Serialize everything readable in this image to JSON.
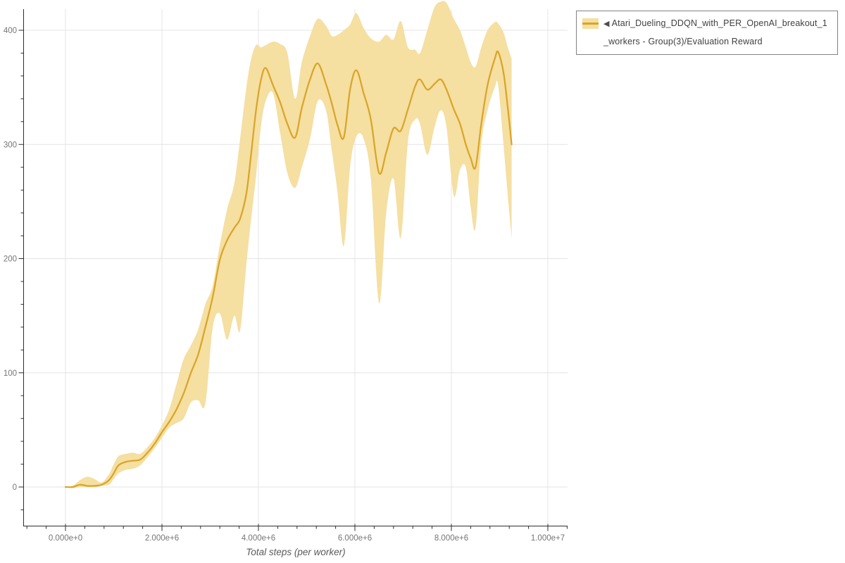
{
  "legend": {
    "arrow": "◀",
    "label": "Atari_Dueling_DDQN_with_PER_OpenAI_breakout_1_workers - Group(3)/Evaluation Reward",
    "border_color": "#828282"
  },
  "chart_data": {
    "type": "line",
    "title": "Atari_Dueling_DDQN_with_PER_OpenAI_breakout_1_workers - Group(3)/Evaluation Reward",
    "xlabel": "Total steps (per worker)",
    "ylabel": "",
    "legend_position": "top-right",
    "grid": "major",
    "xlim": [
      -880000,
      10430000
    ],
    "ylim": [
      -34,
      418
    ],
    "x_axis": {
      "major_ticks": [
        0,
        2000000,
        4000000,
        6000000,
        8000000,
        10000000
      ],
      "major_labels": [
        "0.000e+0",
        "2.000e+6",
        "4.000e+6",
        "6.000e+6",
        "8.000e+6",
        "1.000e+7"
      ],
      "minor_interval": 400000
    },
    "y_axis": {
      "major_ticks": [
        0,
        100,
        200,
        300,
        400
      ],
      "major_labels": [
        "0",
        "100",
        "200",
        "300",
        "400"
      ],
      "minor_interval": 20
    },
    "colors": {
      "line": "#d9a426",
      "band": "#f5dfa1",
      "grid": "#e4e4e4",
      "axis": "#2e2e2e",
      "tick_label": "#757575",
      "axis_title": "#595959"
    },
    "series": [
      {
        "name": "Atari_Dueling_DDQN_with_PER_OpenAI_breakout_1_workers - Group(3)/Evaluation Reward",
        "metric": "Evaluation Reward",
        "x_steps": [
          0,
          150000,
          300000,
          450000,
          600000,
          750000,
          900000,
          1000000,
          1100000,
          1250000,
          1400000,
          1550000,
          1700000,
          1850000,
          2000000,
          2150000,
          2300000,
          2450000,
          2600000,
          2750000,
          2900000,
          3050000,
          3200000,
          3350000,
          3500000,
          3620000,
          3750000,
          3850000,
          3950000,
          4050000,
          4150000,
          4300000,
          4450000,
          4600000,
          4760000,
          4900000,
          5070000,
          5230000,
          5400000,
          5520000,
          5640000,
          5770000,
          5900000,
          6030000,
          6180000,
          6330000,
          6500000,
          6650000,
          6800000,
          6950000,
          7100000,
          7250000,
          7350000,
          7500000,
          7650000,
          7780000,
          7900000,
          8050000,
          8180000,
          8300000,
          8400000,
          8500000,
          8620000,
          8750000,
          8900000,
          8970000,
          9080000,
          9170000,
          9250000
        ],
        "mean": [
          0,
          0,
          2,
          1,
          1,
          2,
          6,
          12,
          19,
          22,
          23,
          24,
          30,
          38,
          48,
          57,
          68,
          82,
          100,
          116,
          140,
          166,
          199,
          216,
          227,
          235,
          257,
          292,
          330,
          356,
          367,
          352,
          337,
          318,
          306,
          332,
          357,
          371,
          353,
          336,
          317,
          306,
          348,
          365,
          345,
          322,
          275,
          293,
          314,
          312,
          331,
          351,
          357,
          348,
          353,
          357,
          348,
          331,
          318,
          300,
          288,
          280,
          318,
          352,
          375,
          381,
          363,
          332,
          300
        ],
        "band_low": [
          0,
          -1,
          0,
          0,
          0,
          1,
          2,
          7,
          12,
          15,
          16,
          19,
          26,
          34,
          43,
          52,
          56,
          60,
          74,
          76,
          73,
          139,
          152,
          129,
          150,
          137,
          195,
          235,
          272,
          315,
          338,
          345,
          310,
          275,
          262,
          280,
          305,
          338,
          330,
          295,
          258,
          211,
          280,
          307,
          305,
          270,
          161,
          240,
          270,
          218,
          303,
          322,
          318,
          291,
          315,
          330,
          315,
          255,
          278,
          280,
          245,
          227,
          300,
          330,
          350,
          352,
          300,
          255,
          218
        ],
        "band_high": [
          0,
          1,
          6,
          9,
          7,
          4,
          11,
          20,
          27,
          29,
          30,
          29,
          35,
          43,
          54,
          68,
          90,
          112,
          124,
          138,
          160,
          176,
          212,
          243,
          266,
          305,
          350,
          375,
          387,
          385,
          387,
          390,
          388,
          380,
          340,
          372,
          395,
          410,
          404,
          395,
          396,
          400,
          405,
          415,
          402,
          393,
          390,
          396,
          392,
          408,
          385,
          383,
          380,
          400,
          420,
          425,
          424,
          410,
          400,
          385,
          372,
          368,
          385,
          400,
          407,
          406,
          398,
          385,
          375
        ]
      }
    ]
  }
}
